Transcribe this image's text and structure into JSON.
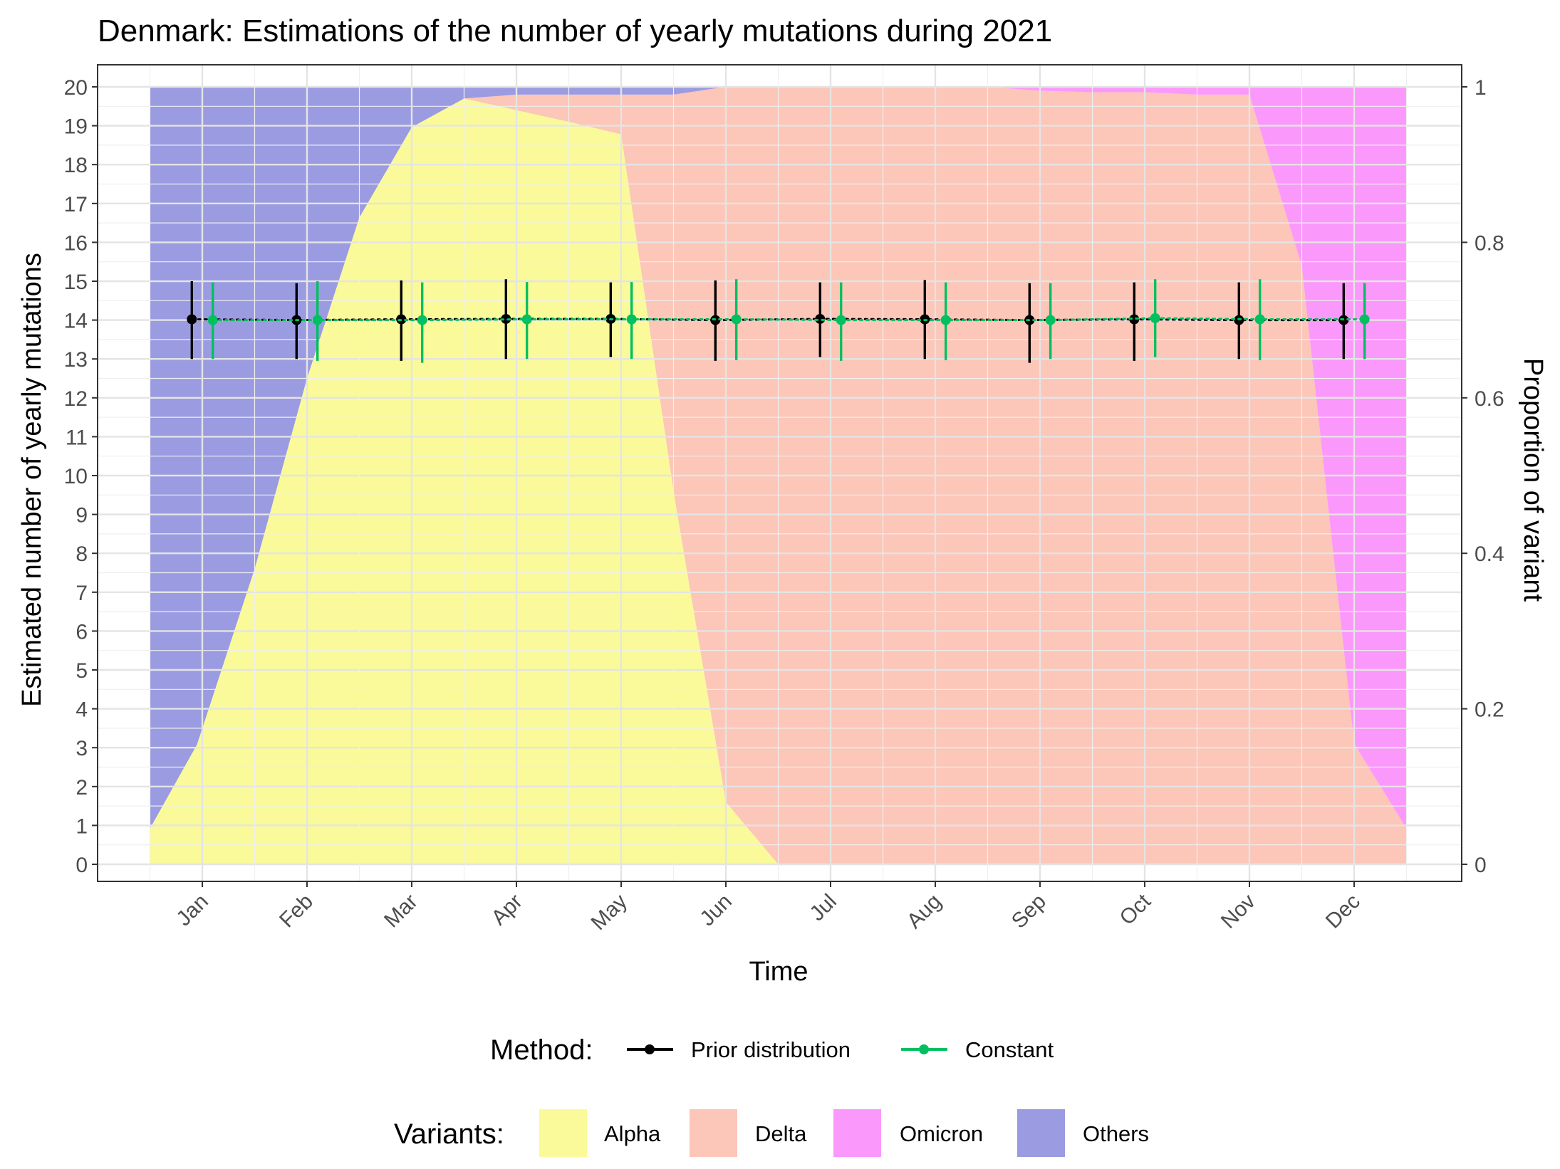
{
  "chart_data": {
    "type": "area",
    "title": "Denmark: Estimations of the number of yearly mutations during 2021",
    "xlabel": "Time",
    "ylabel": "Estimated number of yearly mutations",
    "y2label": "Proportion of variant",
    "months": [
      "Jan",
      "Feb",
      "Mar",
      "Apr",
      "May",
      "Jun",
      "Jul",
      "Aug",
      "Sep",
      "Oct",
      "Nov",
      "Dec"
    ],
    "ylim": [
      0,
      20
    ],
    "yticks": [
      "0",
      "1",
      "2",
      "3",
      "4",
      "5",
      "6",
      "7",
      "8",
      "9",
      "10",
      "11",
      "12",
      "13",
      "14",
      "15",
      "16",
      "17",
      "18",
      "19",
      "20"
    ],
    "y2lim": [
      0,
      1
    ],
    "y2ticks": [
      "0",
      "0.2",
      "0.4",
      "0.6",
      "0.8",
      "1"
    ],
    "grid": true,
    "variant_areas": {
      "x": [
        -0.5,
        -0.05,
        0.5,
        1.0,
        1.5,
        2.0,
        2.5,
        3.0,
        3.5,
        4.0,
        4.5,
        5.0,
        5.5,
        6.0,
        6.5,
        7.0,
        7.5,
        8.0,
        8.5,
        9.0,
        9.5,
        10.0,
        10.5,
        11.0,
        11.5
      ],
      "cumulative_tops": {
        "Alpha": [
          0.046,
          0.154,
          0.38,
          0.625,
          0.832,
          0.948,
          0.985,
          0.97,
          0.955,
          0.939,
          0.48,
          0.08,
          0,
          0,
          0,
          0,
          0,
          0,
          0,
          0,
          0,
          0,
          0,
          0,
          0
        ],
        "Delta": [
          0.046,
          0.154,
          0.38,
          0.625,
          0.832,
          0.948,
          0.985,
          0.99,
          0.99,
          0.99,
          0.99,
          1.0,
          1.0,
          1.0,
          1.0,
          1.0,
          1.0,
          0.995,
          0.993,
          0.993,
          0.99,
          0.99,
          0.77,
          0.155,
          0.046
        ],
        "Omicron": [
          0.046,
          0.154,
          0.38,
          0.625,
          0.832,
          0.948,
          0.985,
          0.99,
          0.99,
          0.99,
          0.99,
          1.0,
          1.0,
          1.0,
          1.0,
          1.0,
          1.0,
          1.0,
          1.0,
          1.0,
          1.0,
          1.0,
          1.0,
          1.0,
          1.0
        ],
        "Others": [
          1,
          1,
          1,
          1,
          1,
          1,
          1,
          1,
          1,
          1,
          1,
          1,
          1,
          1,
          1,
          1,
          1,
          1,
          1,
          1,
          1,
          1,
          1,
          1,
          1
        ]
      }
    },
    "series": [
      {
        "name": "Prior distribution",
        "color": "#000000",
        "x": [
          -0.1,
          0.9,
          1.9,
          2.9,
          3.9,
          4.9,
          5.9,
          6.9,
          7.9,
          8.9,
          9.9,
          10.9
        ],
        "y": [
          14.02,
          14.0,
          14.02,
          14.03,
          14.03,
          14.0,
          14.03,
          14.02,
          14.0,
          14.02,
          14.0,
          14.0
        ],
        "low": [
          13.0,
          13.0,
          12.95,
          13.0,
          13.05,
          12.95,
          13.05,
          13.0,
          12.9,
          12.95,
          13.0,
          13.0
        ],
        "high": [
          15.0,
          14.95,
          15.02,
          15.05,
          14.97,
          15.02,
          14.97,
          15.03,
          14.95,
          14.97,
          14.97,
          14.95
        ]
      },
      {
        "name": "Constant",
        "color": "#00C060",
        "x": [
          0.1,
          1.1,
          2.1,
          3.1,
          4.1,
          5.1,
          6.1,
          7.1,
          8.1,
          9.1,
          10.1,
          11.1
        ],
        "y": [
          14.0,
          14.0,
          14.0,
          14.02,
          14.02,
          14.02,
          14.0,
          14.0,
          14.0,
          14.05,
          14.02,
          14.02
        ],
        "low": [
          13.0,
          12.95,
          12.9,
          13.0,
          13.0,
          12.97,
          12.95,
          12.97,
          13.0,
          13.05,
          12.97,
          13.0
        ],
        "high": [
          14.97,
          15.0,
          14.97,
          14.98,
          14.98,
          15.05,
          14.97,
          14.97,
          14.95,
          15.05,
          15.05,
          14.95
        ]
      }
    ],
    "legend": {
      "method_title": "Method:",
      "methods": [
        "Prior distribution",
        "Constant"
      ],
      "variant_title": "Variants:",
      "variants": [
        {
          "name": "Alpha",
          "color": "#FAFA9A"
        },
        {
          "name": "Delta",
          "color": "#FCC6B8"
        },
        {
          "name": "Omicron",
          "color": "#FB98FB"
        },
        {
          "name": "Others",
          "color": "#9B9BE2"
        }
      ],
      "placement": "bottom"
    }
  }
}
